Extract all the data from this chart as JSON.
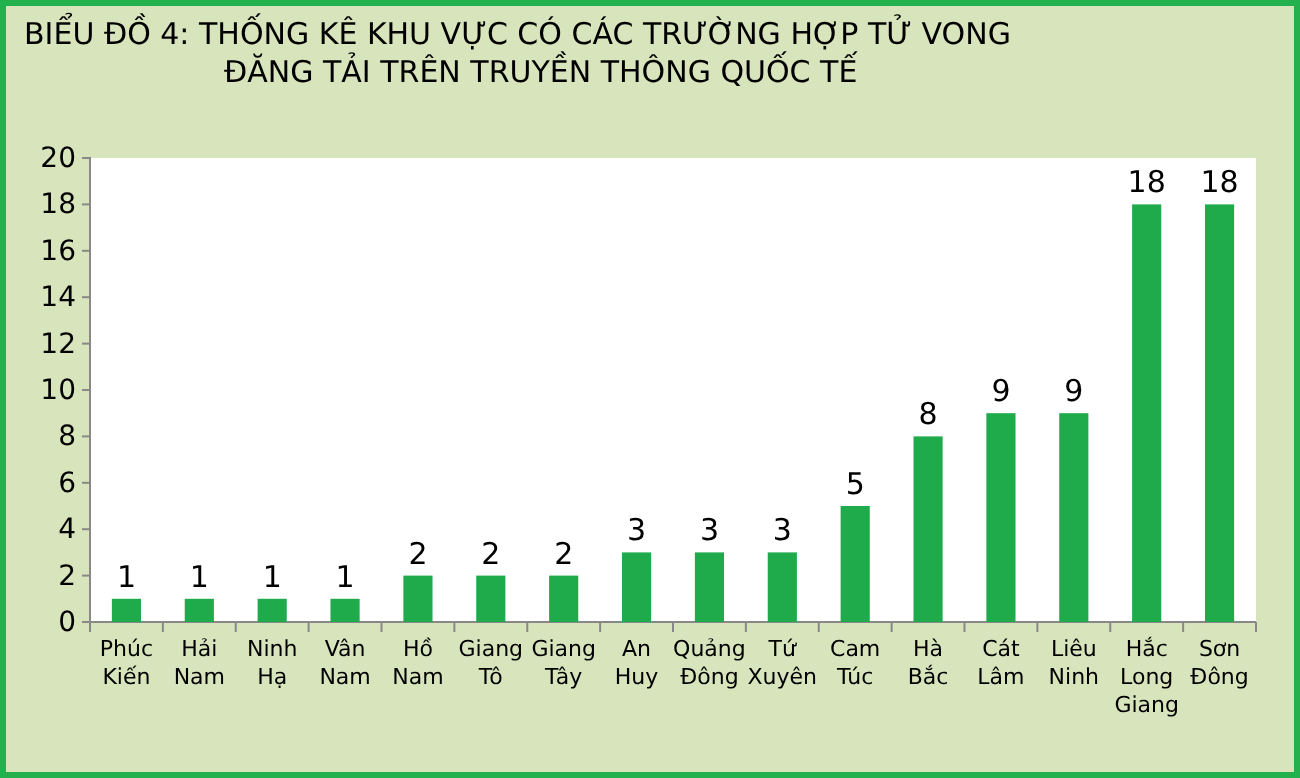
{
  "chart_data": {
    "type": "bar",
    "title": "BIỂU ĐỒ 4: THỐNG KÊ KHU VỰC CÓ CÁC TRƯỜNG HỢP TỬ VONG\nĐĂNG TẢI TRÊN TRUYỀN THÔNG QUỐC TẾ",
    "categories": [
      "Phúc Kiến",
      "Hải Nam",
      "Ninh Hạ",
      "Vân Nam",
      "Hồ Nam",
      "Giang Tô",
      "Giang Tây",
      "An Huy",
      "Quảng Đông",
      "Tứ Xuyên",
      "Cam Túc",
      "Hà Bắc",
      "Cát Lâm",
      "Liêu Ninh",
      "Hắc Long Giang",
      "Sơn Đông"
    ],
    "values": [
      1,
      1,
      1,
      1,
      2,
      2,
      2,
      3,
      3,
      3,
      5,
      8,
      9,
      9,
      18,
      18
    ],
    "color": "#1faa4b",
    "ylim": [
      0,
      20
    ],
    "yticks": [
      0,
      2,
      4,
      6,
      8,
      10,
      12,
      14,
      16,
      18,
      20
    ],
    "data_labels": true
  }
}
